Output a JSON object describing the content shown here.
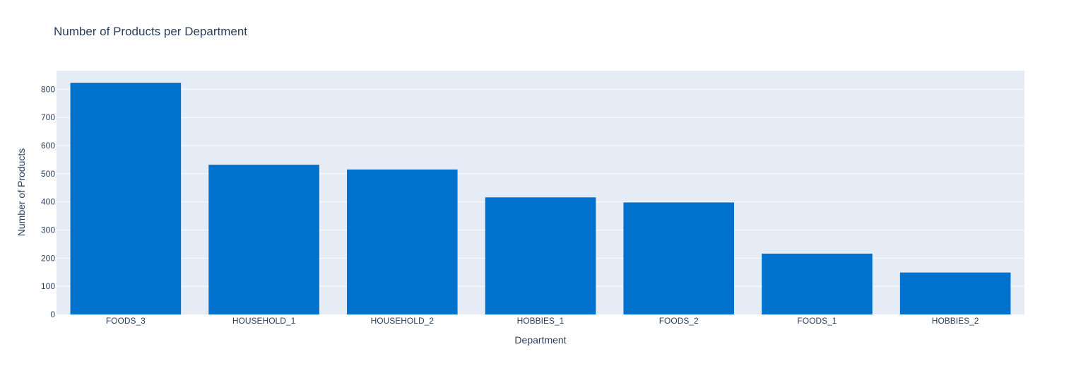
{
  "chart_data": {
    "type": "bar",
    "title": "Number of Products per Department",
    "xlabel": "Department",
    "ylabel": "Number of Products",
    "categories": [
      "FOODS_3",
      "HOUSEHOLD_1",
      "HOUSEHOLD_2",
      "HOBBIES_1",
      "FOODS_2",
      "FOODS_1",
      "HOBBIES_2"
    ],
    "values": [
      823,
      532,
      515,
      416,
      398,
      216,
      149
    ],
    "ylim": [
      0,
      866
    ],
    "yticks": [
      0,
      100,
      200,
      300,
      400,
      500,
      600,
      700,
      800
    ],
    "grid": true,
    "bar_color": "#0072ce",
    "plot_background": "#e5ecf6"
  }
}
